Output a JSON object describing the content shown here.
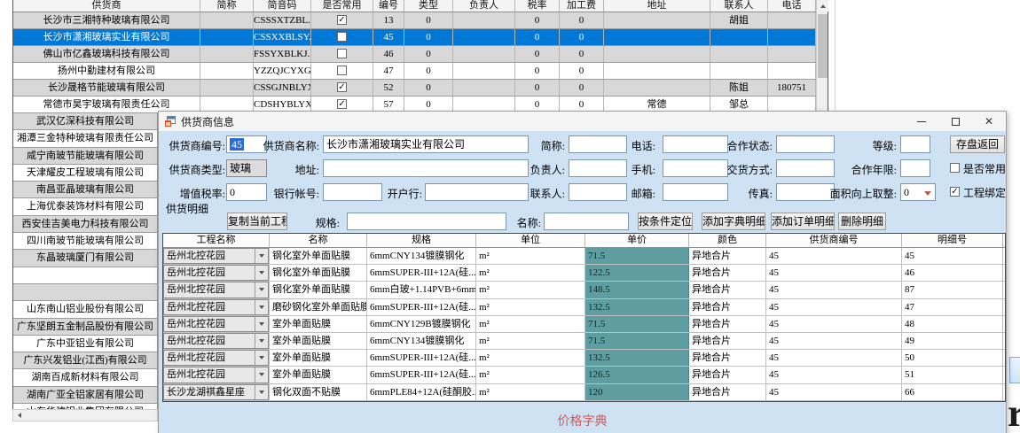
{
  "colors": {
    "selection_blue": "#0078d7",
    "price_cell_teal": "#5f9ea0",
    "dialog_bg_blue": "#cfe2f4",
    "footer_red": "#cd5c5c"
  },
  "suppliers_grid": {
    "columns": [
      "供货商",
      "简称",
      "简音码",
      "是否常用",
      "编号",
      "类型",
      "负责人",
      "税率",
      "加工费",
      "地址",
      "联系人",
      "电话"
    ],
    "rows": [
      {
        "name": "长沙市三湘特种玻璃有限公司",
        "short": "",
        "code": "CSSSXTZBL..",
        "common": true,
        "no": "13",
        "type": "0",
        "leader": "",
        "tax": "0",
        "fee": "0",
        "addr": "",
        "contact": "胡姐",
        "phone": "",
        "selected": false
      },
      {
        "name": "长沙市潇湘玻璃实业有限公司",
        "short": "",
        "code": "CSSXXBLSY..",
        "common": false,
        "no": "45",
        "type": "0",
        "leader": "",
        "tax": "0",
        "fee": "0",
        "addr": "",
        "contact": "",
        "phone": "",
        "selected": true
      },
      {
        "name": "佛山市亿鑫玻璃科技有限公司",
        "short": "",
        "code": "FSSYXBLKJ..",
        "common": false,
        "no": "46",
        "type": "0",
        "leader": "",
        "tax": "0",
        "fee": "0",
        "addr": "",
        "contact": "",
        "phone": "",
        "selected": false
      },
      {
        "name": "扬州中勤建材有限公司",
        "short": "",
        "code": "YZZQJCYXGS",
        "common": false,
        "no": "47",
        "type": "0",
        "leader": "",
        "tax": "0",
        "fee": "0",
        "addr": "",
        "contact": "",
        "phone": "",
        "selected": false
      },
      {
        "name": "长沙晟格节能玻璃有限公司",
        "short": "",
        "code": "CSSGJNBLYXGS",
        "common": true,
        "no": "52",
        "type": "0",
        "leader": "",
        "tax": "0",
        "fee": "0",
        "addr": "",
        "contact": "陈姐",
        "phone": "180751",
        "selected": false
      },
      {
        "name": "常德市昊宇玻璃有限责任公司",
        "short": "",
        "code": "CDSHYBLYX",
        "common": true,
        "no": "57",
        "type": "0",
        "leader": "",
        "tax": "0",
        "fee": "0",
        "addr": "常德",
        "contact": "邹总",
        "phone": "",
        "selected": false
      }
    ]
  },
  "supplier_list": {
    "items": [
      {
        "label": "武汉亿深科技有限公司"
      },
      {
        "label": "湘潭三金特种玻璃有限责任公司"
      },
      {
        "label": "咸宁南玻节能玻璃有限公司"
      },
      {
        "label": "天津耀皮工程玻璃有限公司"
      },
      {
        "label": "南昌亚晶玻璃有限公司"
      },
      {
        "label": "上海优泰装饰材料有限公司"
      },
      {
        "label": "西安佳吉美电力科技有限公司"
      },
      {
        "label": "四川南玻节能玻璃有限公司"
      },
      {
        "label": "东晶玻璃厦门有限公司"
      },
      {
        "label": ""
      },
      {
        "label": ""
      },
      {
        "label": "山东南山铝业股份有限公司"
      },
      {
        "label": "广东坚朗五金制品股份有限公司"
      },
      {
        "label": "广东中亚铝业有限公司"
      },
      {
        "label": "广东兴发铝业(江西)有限公司"
      },
      {
        "label": "湖南百成新材料有限公司"
      },
      {
        "label": "湖南广亚全铝家居有限公司"
      },
      {
        "label": "山东华建铝业集团有限公司"
      }
    ]
  },
  "dialog": {
    "title": "供货商信息",
    "form": {
      "supplier_no": {
        "label": "供货商编号:",
        "value": "45"
      },
      "supplier_name": {
        "label": "供货商名称:",
        "value": "长沙市潇湘玻璃实业有限公司"
      },
      "short_name": {
        "label": "简称:",
        "value": ""
      },
      "phone": {
        "label": "电话:",
        "value": ""
      },
      "coop_status": {
        "label": "合作状态:",
        "value": ""
      },
      "grade": {
        "label": "等级:",
        "value": ""
      },
      "save_button": "存盘返回",
      "supplier_type": {
        "label": "供货商类型:",
        "value": "玻璃"
      },
      "address": {
        "label": "地址:",
        "value": ""
      },
      "leader": {
        "label": "负责人:",
        "value": ""
      },
      "mobile": {
        "label": "手机:",
        "value": ""
      },
      "delivery_mode": {
        "label": "交货方式:",
        "value": ""
      },
      "coop_years": {
        "label": "合作年限:",
        "value": ""
      },
      "common_checkbox": {
        "label": "是否常用",
        "checked": false
      },
      "vat_rate": {
        "label": "增值税率:",
        "value": "0"
      },
      "bank_account": {
        "label": "银行帐号:",
        "value": ""
      },
      "bank_name": {
        "label": "开户行:",
        "value": ""
      },
      "contact": {
        "label": "联系人:",
        "value": ""
      },
      "email": {
        "label": "邮箱:",
        "value": ""
      },
      "fax": {
        "label": "传真:",
        "value": ""
      },
      "area_roundup": {
        "label": "面积向上取整:",
        "value": "0"
      },
      "project_bind_checkbox": {
        "label": "工程绑定",
        "checked": true
      }
    },
    "detail": {
      "section_label": "供货明细",
      "copy_project_button": "复制当前工程",
      "spec_filter": {
        "label": "规格:",
        "value": ""
      },
      "name_filter": {
        "label": "名称:",
        "value": ""
      },
      "locate_button": "按条件定位",
      "add_dict_button": "添加字典明细",
      "add_order_button": "添加订单明细",
      "delete_button": "删除明细",
      "table": {
        "columns": [
          "工程名称",
          "名称",
          "规格",
          "单位",
          "单价",
          "颜色",
          "供货商编号",
          "明细号"
        ],
        "rows": [
          {
            "project": "岳州北控花园",
            "name": "钢化室外单面贴膜",
            "spec": "6mmCNY134镀膜钢化",
            "unit": "m²",
            "price": "71.5",
            "color": "异地合片",
            "supplier_no": "45",
            "detail_no": "45"
          },
          {
            "project": "岳州北控花园",
            "name": "钢化室外单面贴膜",
            "spec": "6mmSUPER-III+12A(硅...",
            "unit": "m²",
            "price": "122.5",
            "color": "异地合片",
            "supplier_no": "45",
            "detail_no": "46"
          },
          {
            "project": "岳州北控花园",
            "name": "钢化室外单面贴膜",
            "spec": "6mm白玻+1.14PVB+6mm...",
            "unit": "m²",
            "price": "148.5",
            "color": "异地合片",
            "supplier_no": "45",
            "detail_no": "87"
          },
          {
            "project": "岳州北控花园",
            "name": "磨砂钢化室外单面贴膜",
            "spec": "6mmSUPER-III+12A(硅...",
            "unit": "m²",
            "price": "132.5",
            "color": "异地合片",
            "supplier_no": "45",
            "detail_no": "47"
          },
          {
            "project": "岳州北控花园",
            "name": "室外单面贴膜",
            "spec": "6mmCNY129B镀膜钢化",
            "unit": "m²",
            "price": "71.5",
            "color": "异地合片",
            "supplier_no": "45",
            "detail_no": "48"
          },
          {
            "project": "岳州北控花园",
            "name": "室外单面贴膜",
            "spec": "6mmCNY134镀膜钢化",
            "unit": "m²",
            "price": "71.5",
            "color": "异地合片",
            "supplier_no": "45",
            "detail_no": "49"
          },
          {
            "project": "岳州北控花园",
            "name": "室外单面贴膜",
            "spec": "6mmSUPER-III+12A(硅...",
            "unit": "m²",
            "price": "132.5",
            "color": "异地合片",
            "supplier_no": "45",
            "detail_no": "50"
          },
          {
            "project": "岳州北控花园",
            "name": "室外单面贴膜",
            "spec": "6mmSUPER-III+12A(硅...",
            "unit": "m²",
            "price": "126.5",
            "color": "异地合片",
            "supplier_no": "45",
            "detail_no": "51"
          },
          {
            "project": "长沙龙湖祺鑫星座",
            "name": "钢化双面不贴膜",
            "spec": "6mmPLE84+12A(硅酮胶...",
            "unit": "m²",
            "price": "120",
            "color": "异地合片",
            "supplier_no": "45",
            "detail_no": "66"
          }
        ]
      },
      "footer_label": "价格字典"
    }
  }
}
